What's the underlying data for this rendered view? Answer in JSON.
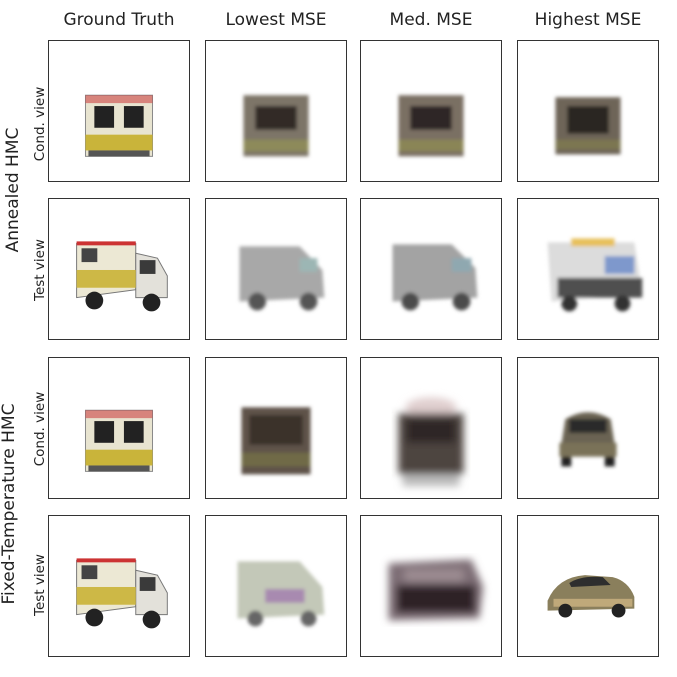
{
  "columns": [
    "Ground Truth",
    "Lowest MSE",
    "Med. MSE",
    "Highest MSE"
  ],
  "groups": [
    {
      "label": "Annealed HMC",
      "rows": [
        "Cond. view",
        "Test view"
      ]
    },
    {
      "label": "Fixed-Temperature HMC",
      "rows": [
        "Cond. view",
        "Test view"
      ]
    }
  ],
  "panels": [
    [
      "ambulance-back-sharp",
      "ambulance-back-blur",
      "ambulance-back-blur",
      "ambulance-back-blur2"
    ],
    [
      "ambulance-side-sharp",
      "van-blur-gray",
      "van-blur-gray",
      "ambulance-side-noisy"
    ],
    [
      "ambulance-back-sharp",
      "ambulance-back-blur-dark",
      "car-back-blur",
      "car-back"
    ],
    [
      "ambulance-side-sharp",
      "van-blur-pastel",
      "van-blur-dark",
      "car-side"
    ]
  ]
}
